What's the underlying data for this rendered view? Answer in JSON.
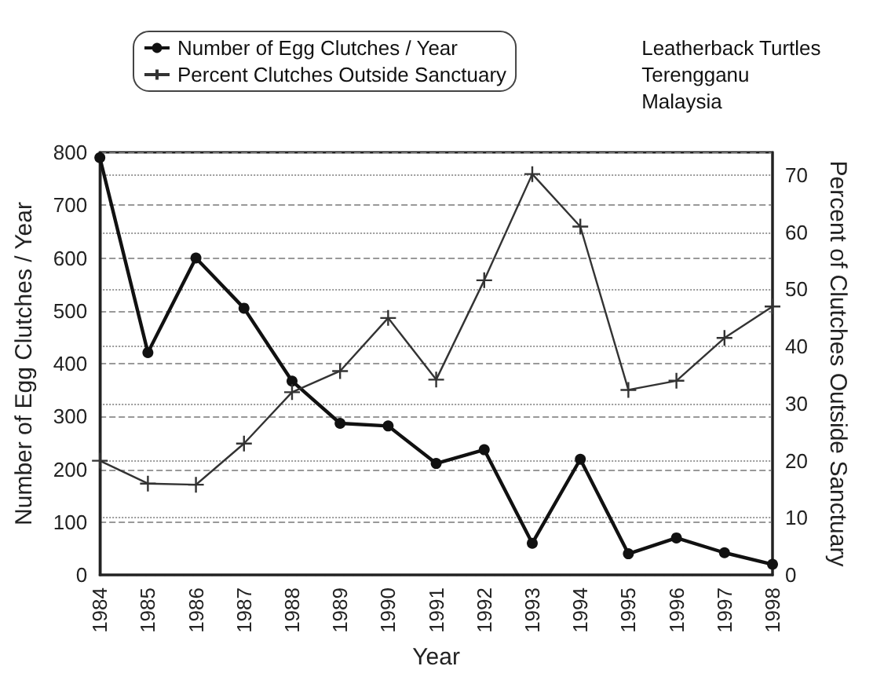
{
  "chart_data": {
    "type": "line",
    "xlabel": "Year",
    "ylabel": "Number of Egg Clutches / Year",
    "y2label": "Percent of Clutches Outside Sanctuary",
    "annotations": [
      "Leatherback Turtles\nTerengganu\nMalaysia"
    ],
    "categories": [
      "1984",
      "1985",
      "1986",
      "1987",
      "1988",
      "1989",
      "1990",
      "1991",
      "1992",
      "1993",
      "1994",
      "1995",
      "1996",
      "1997",
      "1998"
    ],
    "series": [
      {
        "name": "Number of Egg Clutches / Year",
        "color": "#111111",
        "marker": "circle",
        "values": [
          790,
          421,
          600,
          505,
          367,
          287,
          282,
          211,
          237,
          60,
          219,
          40,
          70,
          42,
          20
        ]
      },
      {
        "name": "Percent Clutches Outside Sanctuary",
        "color": "#333333",
        "marker": "cross",
        "axis": "y2",
        "values": [
          20,
          16,
          15.8,
          23,
          32,
          35.7,
          45,
          34.2,
          51.6,
          70.2,
          61,
          32.4,
          34,
          41.5,
          47
        ]
      }
    ],
    "ylim": [
      0,
      800
    ],
    "yticks": [
      0,
      100,
      200,
      300,
      400,
      500,
      600,
      700,
      800
    ],
    "y2lim": [
      0,
      74
    ],
    "y2ticks": [
      0,
      10,
      20,
      30,
      40,
      50,
      60,
      70
    ],
    "grid": true,
    "legend": "top left"
  }
}
